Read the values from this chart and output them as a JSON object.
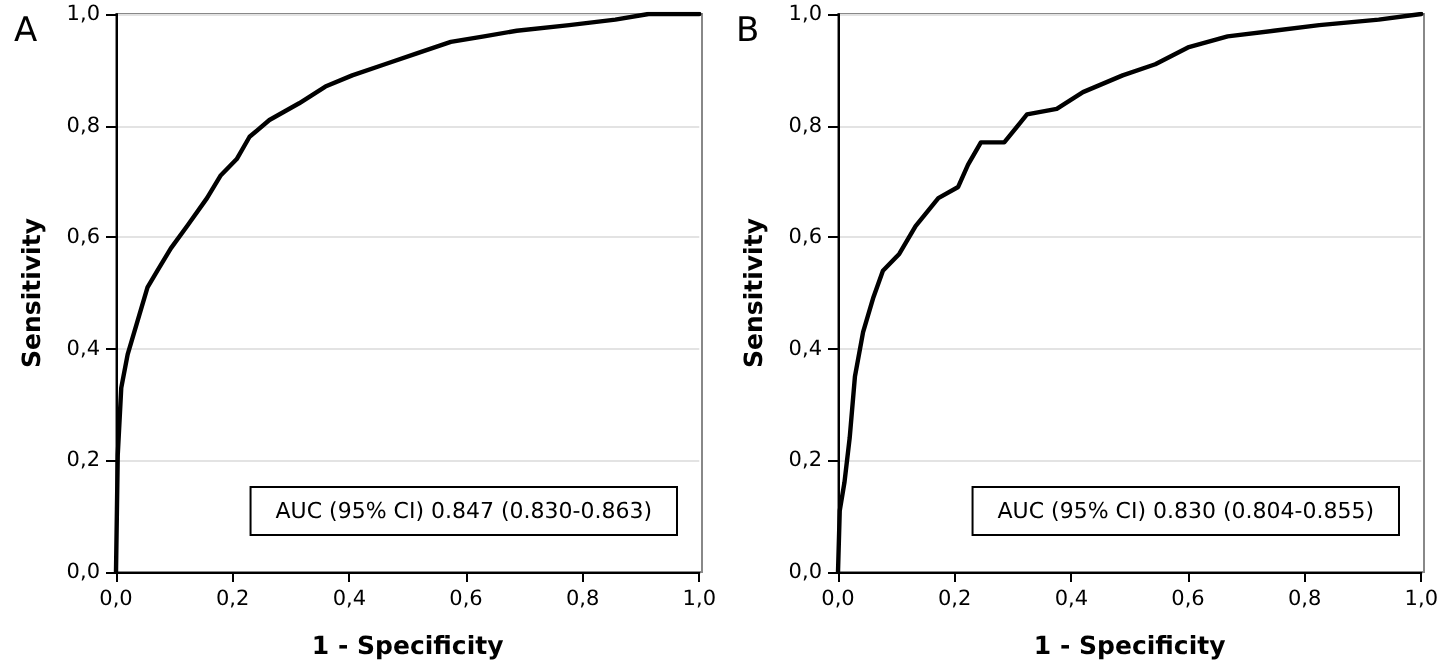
{
  "chart_data": [
    {
      "type": "line",
      "title": "A",
      "xlabel": "1 - Specificity",
      "ylabel": "Sensitivity",
      "annotations": [
        "AUC (95% CI) 0.847 (0.830-0.863)"
      ],
      "grid": "y",
      "marker": "none",
      "line_style": "solid",
      "xlim": [
        0,
        1
      ],
      "ylim": [
        0,
        1
      ],
      "xticks": [
        {
          "value": 0,
          "label": "0,0"
        },
        {
          "value": 0.2,
          "label": "0,2"
        },
        {
          "value": 0.4,
          "label": "0,4"
        },
        {
          "value": 0.6,
          "label": "0,6"
        },
        {
          "value": 0.8,
          "label": "0,8"
        },
        {
          "value": 1,
          "label": "1,0"
        }
      ],
      "yticks": [
        {
          "value": 0,
          "label": "0,0"
        },
        {
          "value": 0.2,
          "label": "0,2"
        },
        {
          "value": 0.4,
          "label": "0,4"
        },
        {
          "value": 0.6,
          "label": "0,6"
        },
        {
          "value": 0.8,
          "label": "0,8"
        },
        {
          "value": 1,
          "label": "1,0"
        }
      ],
      "series": [
        {
          "color": "#000000",
          "x": [
            0,
            0.003,
            0.009,
            0.02,
            0.037,
            0.054,
            0.071,
            0.094,
            0.122,
            0.156,
            0.179,
            0.207,
            0.229,
            0.263,
            0.314,
            0.359,
            0.405,
            0.461,
            0.517,
            0.574,
            0.631,
            0.687,
            0.777,
            0.856,
            0.913,
            1
          ],
          "values": [
            0,
            0.21,
            0.33,
            0.39,
            0.45,
            0.51,
            0.54,
            0.58,
            0.62,
            0.67,
            0.71,
            0.74,
            0.78,
            0.81,
            0.84,
            0.87,
            0.89,
            0.91,
            0.93,
            0.95,
            0.96,
            0.97,
            0.98,
            0.99,
            1,
            1
          ]
        }
      ]
    },
    {
      "type": "line",
      "title": "B",
      "xlabel": "1 - Specificity",
      "ylabel": "Sensitivity",
      "annotations": [
        "AUC (95% CI) 0.830 (0.804-0.855)"
      ],
      "grid": "y",
      "marker": "none",
      "line_style": "solid",
      "xlim": [
        0,
        1
      ],
      "ylim": [
        0,
        1
      ],
      "xticks": [
        {
          "value": 0,
          "label": "0,0"
        },
        {
          "value": 0.2,
          "label": "0,2"
        },
        {
          "value": 0.4,
          "label": "0,4"
        },
        {
          "value": 0.6,
          "label": "0,6"
        },
        {
          "value": 0.8,
          "label": "0,8"
        },
        {
          "value": 1,
          "label": "1,0"
        }
      ],
      "yticks": [
        {
          "value": 0,
          "label": "0,0"
        },
        {
          "value": 0.2,
          "label": "0,2"
        },
        {
          "value": 0.4,
          "label": "0,4"
        },
        {
          "value": 0.6,
          "label": "0,6"
        },
        {
          "value": 0.8,
          "label": "0,8"
        },
        {
          "value": 1,
          "label": "1,0"
        }
      ],
      "series": [
        {
          "color": "#000000",
          "x": [
            0,
            0.003,
            0.011,
            0.02,
            0.029,
            0.043,
            0.06,
            0.077,
            0.105,
            0.133,
            0.172,
            0.206,
            0.223,
            0.245,
            0.285,
            0.324,
            0.375,
            0.42,
            0.488,
            0.544,
            0.6,
            0.668,
            0.747,
            0.825,
            0.927,
            1
          ],
          "values": [
            0,
            0.11,
            0.16,
            0.24,
            0.35,
            0.43,
            0.49,
            0.54,
            0.57,
            0.62,
            0.67,
            0.69,
            0.73,
            0.77,
            0.77,
            0.82,
            0.83,
            0.86,
            0.89,
            0.91,
            0.94,
            0.96,
            0.97,
            0.98,
            0.99,
            1
          ]
        }
      ]
    }
  ]
}
